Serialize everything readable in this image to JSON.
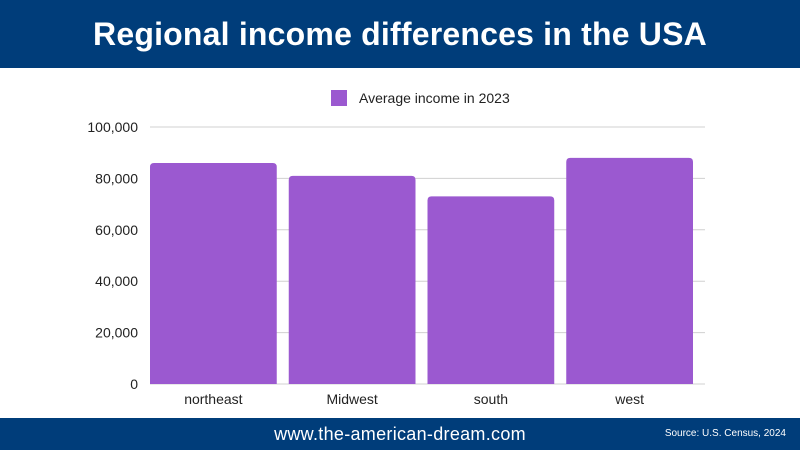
{
  "header": {
    "title": "Regional income differences in the USA"
  },
  "footer": {
    "site": "www.the-american-dream.com",
    "source": "Source: U.S. Census, 2024"
  },
  "colors": {
    "header_bg": "#003d7a",
    "bar": "#9b59d0",
    "grid": "#d0d0d0",
    "text": "#222222"
  },
  "chart_data": {
    "type": "bar",
    "categories": [
      "northeast",
      "Midwest",
      "south",
      "west"
    ],
    "series": [
      {
        "name": "Average income in 2023",
        "values": [
          86000,
          81000,
          73000,
          88000
        ]
      }
    ],
    "ylim": [
      0,
      100000
    ],
    "yticks": [
      0,
      20000,
      40000,
      60000,
      80000,
      100000
    ],
    "ytick_labels": [
      "0",
      "20,000",
      "40,000",
      "60,000",
      "80,000",
      "100,000"
    ],
    "grid": true,
    "legend": "top-center"
  }
}
